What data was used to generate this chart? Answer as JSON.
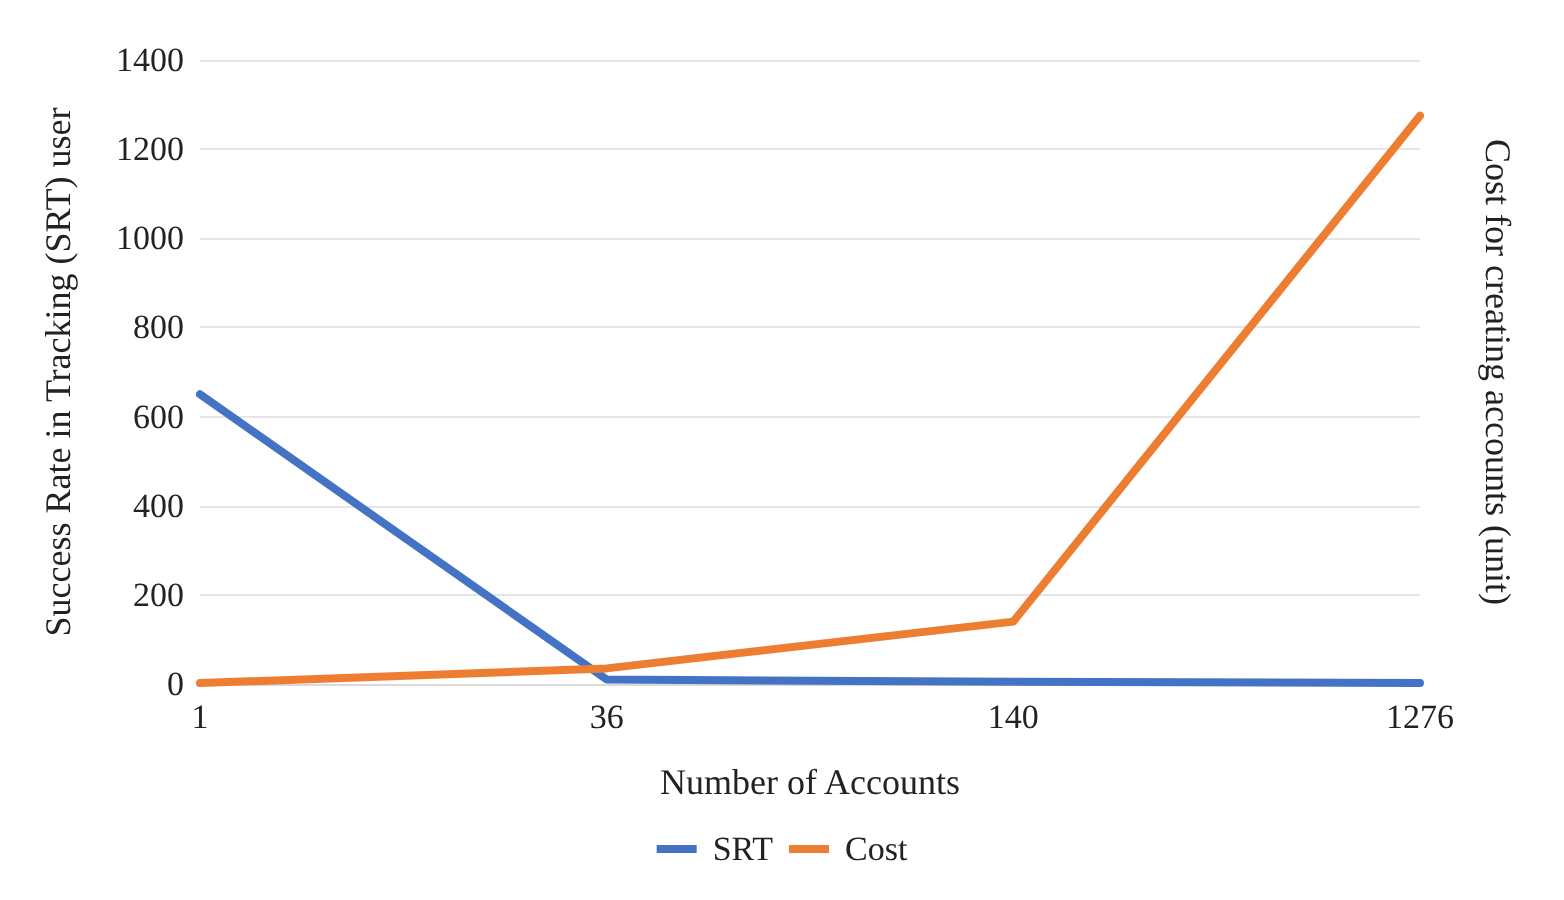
{
  "chart_data": {
    "type": "line",
    "xlabel": "Number of Accounts",
    "ylabel": "Success Rate in Tracking (SRT) user",
    "y2label": "Cost for creating accounts (unit)",
    "categories": [
      "1",
      "36",
      "140",
      "1276"
    ],
    "series": [
      {
        "name": "SRT",
        "color": "#4472c4",
        "values": [
          650,
          10,
          5,
          2
        ]
      },
      {
        "name": "Cost",
        "color": "#ed7d31",
        "values": [
          2,
          35,
          140,
          1275
        ]
      }
    ],
    "ylim": [
      0,
      1400
    ],
    "yticks": [
      0,
      200,
      400,
      600,
      800,
      1000,
      1200,
      1400
    ],
    "grid": "y",
    "legend": "bottom",
    "marker": "none",
    "line_style": "solid"
  }
}
